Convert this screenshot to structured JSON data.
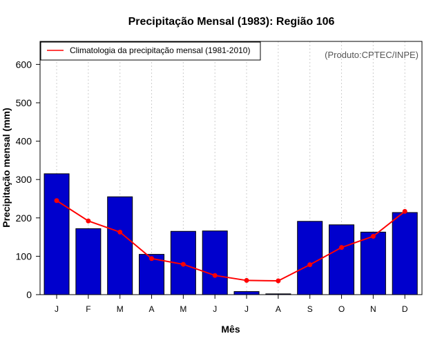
{
  "chart_data": {
    "type": "bar",
    "title": "Precipitação Mensal (1983): Região 106",
    "xlabel": "Mês",
    "ylabel": "Precipitação mensal (mm)",
    "ylim": [
      0,
      660
    ],
    "yticks": [
      0,
      100,
      200,
      300,
      400,
      500,
      600
    ],
    "grid": "vertical dotted",
    "categories": [
      "J",
      "F",
      "M",
      "A",
      "M",
      "J",
      "J",
      "A",
      "S",
      "O",
      "N",
      "D"
    ],
    "series": [
      {
        "name": "Precipitação mensal (1983)",
        "kind": "bar",
        "color": "#0000cd",
        "values": [
          315,
          172,
          255,
          105,
          165,
          166,
          8,
          2,
          191,
          182,
          163,
          214
        ]
      },
      {
        "name": "Climatologia da precipitação mensal (1981-2010)",
        "kind": "line",
        "color": "#ff0000",
        "values": [
          245,
          192,
          163,
          94,
          79,
          50,
          37,
          36,
          78,
          123,
          152,
          217
        ]
      }
    ],
    "legend": {
      "position": "top-left",
      "label": "Climatologia da precipitação mensal (1981-2010)"
    },
    "credit": "(Produto:CPTEC/INPE)"
  }
}
